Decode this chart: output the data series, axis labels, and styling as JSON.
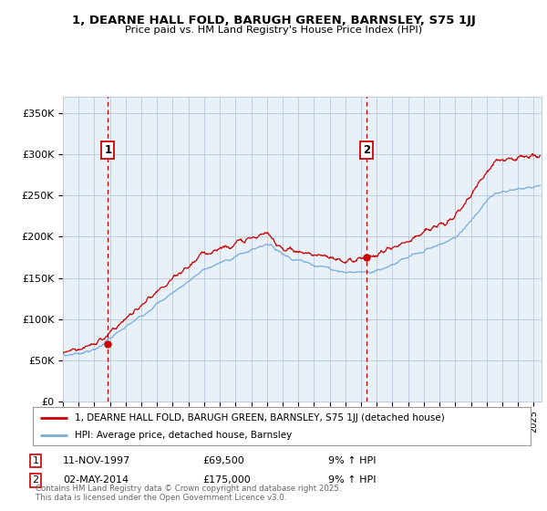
{
  "title": "1, DEARNE HALL FOLD, BARUGH GREEN, BARNSLEY, S75 1JJ",
  "subtitle": "Price paid vs. HM Land Registry's House Price Index (HPI)",
  "ylabel_ticks": [
    "£0",
    "£50K",
    "£100K",
    "£150K",
    "£200K",
    "£250K",
    "£300K",
    "£350K"
  ],
  "ytick_values": [
    0,
    50000,
    100000,
    150000,
    200000,
    250000,
    300000,
    350000
  ],
  "ylim": [
    0,
    370000
  ],
  "xlim_start": 1995.0,
  "xlim_end": 2025.5,
  "purchase1": {
    "date_num": 1997.87,
    "price": 69500,
    "label": "1",
    "hpi_pct": "9% ↑ HPI",
    "date_str": "11-NOV-1997"
  },
  "purchase2": {
    "date_num": 2014.34,
    "price": 175000,
    "label": "2",
    "hpi_pct": "9% ↑ HPI",
    "date_str": "02-MAY-2014"
  },
  "property_color": "#cc0000",
  "hpi_color": "#7aacdc",
  "chart_bg": "#e8f0f8",
  "legend_label_property": "1, DEARNE HALL FOLD, BARUGH GREEN, BARNSLEY, S75 1JJ (detached house)",
  "legend_label_hpi": "HPI: Average price, detached house, Barnsley",
  "footer": "Contains HM Land Registry data © Crown copyright and database right 2025.\nThis data is licensed under the Open Government Licence v3.0.",
  "background_color": "#ffffff",
  "grid_color": "#c0cce0"
}
